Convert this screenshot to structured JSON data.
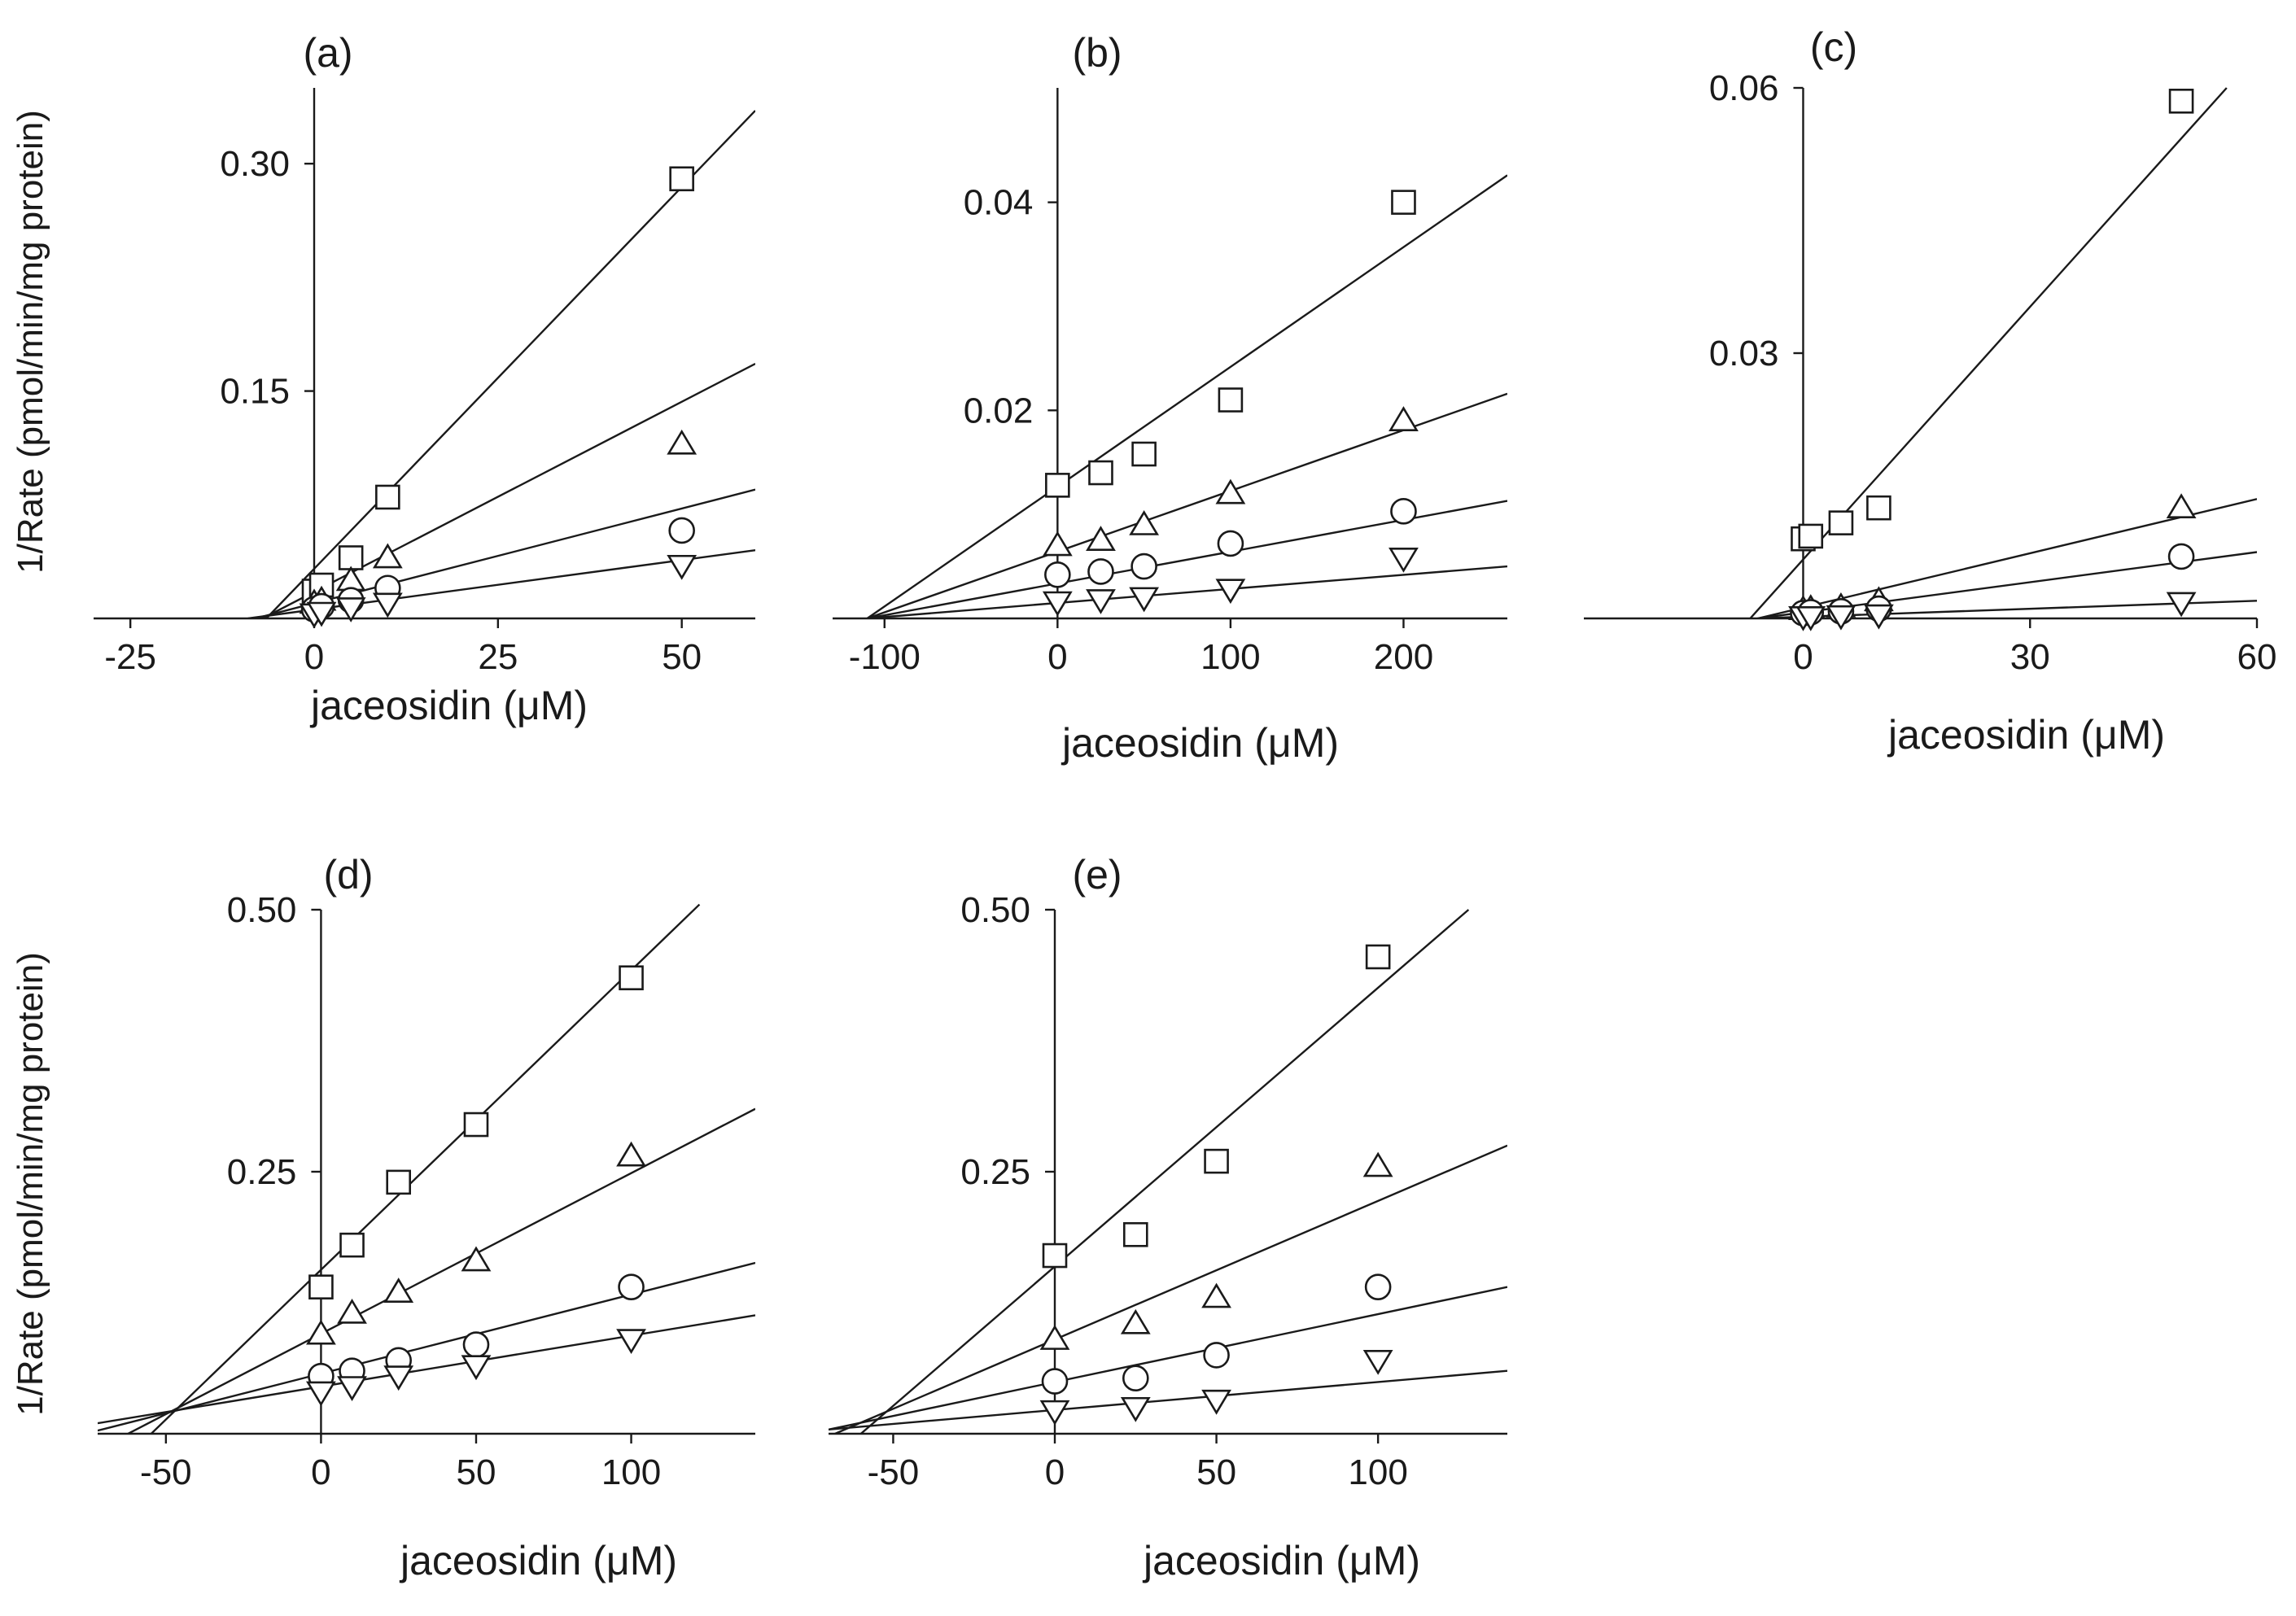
{
  "figure": {
    "y_axis_title_top": "1/Rate (pmol/min/mg protein)",
    "y_axis_title_bottom": "1/Rate (pmol/min/mg protein)"
  },
  "chart_data": [
    {
      "type": "scatter",
      "panel_label": "(a)",
      "xlabel": "jaceosidin (μM)",
      "ylabel": "1/Rate (pmol/min/mg protein)",
      "xlim": [
        -30,
        60
      ],
      "ylim": [
        0,
        0.35
      ],
      "xticks": [
        -25,
        0,
        25,
        50
      ],
      "xtick_labels": [
        "-25",
        "0",
        "25",
        "50"
      ],
      "yticks": [
        0.15,
        0.3
      ],
      "ytick_labels": [
        "0.15",
        "0.30"
      ],
      "series": [
        {
          "name": "square",
          "marker": "square",
          "x": [
            0,
            1,
            5,
            10,
            50
          ],
          "y": [
            0.018,
            0.022,
            0.04,
            0.08,
            0.29
          ],
          "fit": [
            [
              -6.5,
              0
            ],
            [
              60,
              0.335
            ]
          ]
        },
        {
          "name": "triangle-up",
          "marker": "triangle-up",
          "x": [
            0,
            1,
            5,
            10,
            50
          ],
          "y": [
            0.01,
            0.012,
            0.025,
            0.04,
            0.115
          ],
          "fit": [
            [
              -7,
              0
            ],
            [
              60,
              0.168
            ]
          ]
        },
        {
          "name": "circle",
          "marker": "circle",
          "x": [
            0,
            1,
            5,
            10,
            50
          ],
          "y": [
            0.006,
            0.008,
            0.012,
            0.02,
            0.058
          ],
          "fit": [
            [
              -8,
              0
            ],
            [
              60,
              0.085
            ]
          ]
        },
        {
          "name": "triangle-down",
          "marker": "triangle-down",
          "x": [
            0,
            1,
            5,
            10,
            50
          ],
          "y": [
            0.003,
            0.004,
            0.007,
            0.01,
            0.035
          ],
          "fit": [
            [
              -9,
              0
            ],
            [
              60,
              0.045
            ]
          ]
        }
      ]
    },
    {
      "type": "scatter",
      "panel_label": "(b)",
      "xlabel": "jaceosidin (μM)",
      "ylabel": "1/Rate (pmol/min/mg protein)",
      "xlim": [
        -130,
        260
      ],
      "ylim": [
        0,
        0.051
      ],
      "xticks": [
        -100,
        0,
        100,
        200
      ],
      "xtick_labels": [
        "-100",
        "0",
        "100",
        "200"
      ],
      "yticks": [
        0.02,
        0.04
      ],
      "ytick_labels": [
        "0.02",
        "0.04"
      ],
      "series": [
        {
          "name": "square",
          "marker": "square",
          "x": [
            0,
            25,
            50,
            100,
            200
          ],
          "y": [
            0.0128,
            0.014,
            0.0158,
            0.021,
            0.04
          ],
          "fit": [
            [
              -110,
              0
            ],
            [
              260,
              0.0426
            ]
          ]
        },
        {
          "name": "triangle-up",
          "marker": "triangle-up",
          "x": [
            0,
            25,
            50,
            100,
            200
          ],
          "y": [
            0.007,
            0.0075,
            0.009,
            0.012,
            0.019
          ],
          "fit": [
            [
              -110,
              0
            ],
            [
              260,
              0.0216
            ]
          ]
        },
        {
          "name": "circle",
          "marker": "circle",
          "x": [
            0,
            25,
            50,
            100,
            200
          ],
          "y": [
            0.0042,
            0.0045,
            0.005,
            0.0072,
            0.0103
          ],
          "fit": [
            [
              -110,
              0
            ],
            [
              260,
              0.0113
            ]
          ]
        },
        {
          "name": "triangle-down",
          "marker": "triangle-down",
          "x": [
            0,
            25,
            50,
            100,
            200
          ],
          "y": [
            0.0016,
            0.0018,
            0.002,
            0.0028,
            0.0058
          ],
          "fit": [
            [
              -110,
              0
            ],
            [
              260,
              0.005
            ]
          ]
        }
      ]
    },
    {
      "type": "scatter",
      "panel_label": "(c)",
      "xlabel": "jaceosidin (μM)",
      "ylabel": "1/Rate (pmol/min/mg protein)",
      "xlim": [
        -29,
        60
      ],
      "ylim": [
        0,
        0.06
      ],
      "xticks": [
        0,
        30,
        60
      ],
      "xtick_labels": [
        "0",
        "30",
        "60"
      ],
      "yticks": [
        0.03,
        0.06
      ],
      "ytick_labels": [
        "0.03",
        "0.06"
      ],
      "series": [
        {
          "name": "square",
          "marker": "square",
          "x": [
            0,
            1,
            5,
            10,
            50
          ],
          "y": [
            0.009,
            0.0093,
            0.0108,
            0.0125,
            0.0585
          ],
          "fit": [
            [
              -7,
              0
            ],
            [
              56,
              0.06
            ]
          ]
        },
        {
          "name": "triangle-up",
          "marker": "triangle-up",
          "x": [
            0,
            1,
            5,
            10,
            50
          ],
          "y": [
            0.001,
            0.0011,
            0.0013,
            0.002,
            0.0125
          ],
          "fit": [
            [
              -6,
              0
            ],
            [
              60,
              0.0135
            ]
          ]
        },
        {
          "name": "circle",
          "marker": "circle",
          "x": [
            0,
            1,
            5,
            10,
            50
          ],
          "y": [
            0.0006,
            0.0007,
            0.0008,
            0.0011,
            0.007
          ],
          "fit": [
            [
              -6,
              0
            ],
            [
              60,
              0.0075
            ]
          ]
        },
        {
          "name": "triangle-down",
          "marker": "triangle-down",
          "x": [
            0,
            1,
            5,
            10,
            50
          ],
          "y": [
            0.0002,
            0.0002,
            0.0003,
            0.0004,
            0.0018
          ],
          "fit": [
            [
              -6,
              0
            ],
            [
              60,
              0.002
            ]
          ]
        }
      ]
    },
    {
      "type": "scatter",
      "panel_label": "(d)",
      "xlabel": "jaceosidin (μM)",
      "ylabel": "1/Rate (pmol/min/mg protein)",
      "xlim": [
        -72,
        140
      ],
      "ylim": [
        0,
        0.5
      ],
      "xticks": [
        -50,
        0,
        50,
        100
      ],
      "xtick_labels": [
        "-50",
        "0",
        "50",
        "100"
      ],
      "yticks": [
        0.25,
        0.5
      ],
      "ytick_labels": [
        "0.25",
        "0.50"
      ],
      "series": [
        {
          "name": "square",
          "marker": "square",
          "x": [
            0,
            10,
            25,
            50,
            100
          ],
          "y": [
            0.14,
            0.18,
            0.24,
            0.295,
            0.435
          ],
          "fit": [
            [
              -60,
              -0.015
            ],
            [
              122,
              0.505
            ]
          ]
        },
        {
          "name": "triangle-up",
          "marker": "triangle-up",
          "x": [
            0,
            10,
            25,
            50,
            100
          ],
          "y": [
            0.095,
            0.115,
            0.135,
            0.165,
            0.265
          ],
          "fit": [
            [
              -72,
              -0.015
            ],
            [
              140,
              0.31
            ]
          ]
        },
        {
          "name": "circle",
          "marker": "circle",
          "x": [
            0,
            10,
            25,
            50,
            100
          ],
          "y": [
            0.055,
            0.06,
            0.07,
            0.085,
            0.14
          ],
          "fit": [
            [
              -72,
              0.003
            ],
            [
              140,
              0.163
            ]
          ]
        },
        {
          "name": "triangle-down",
          "marker": "triangle-down",
          "x": [
            0,
            10,
            25,
            50,
            100
          ],
          "y": [
            0.04,
            0.045,
            0.055,
            0.065,
            0.09
          ],
          "fit": [
            [
              -72,
              0.01
            ],
            [
              140,
              0.113
            ]
          ]
        }
      ]
    },
    {
      "type": "scatter",
      "panel_label": "(e)",
      "xlabel": "jaceosidin (μM)",
      "ylabel": "1/Rate (pmol/min/mg protein)",
      "xlim": [
        -70,
        140
      ],
      "ylim": [
        0,
        0.5
      ],
      "xticks": [
        -50,
        0,
        50,
        100
      ],
      "xtick_labels": [
        "-50",
        "0",
        "50",
        "100"
      ],
      "yticks": [
        0.25,
        0.5
      ],
      "ytick_labels": [
        "0.25",
        "0.50"
      ],
      "series": [
        {
          "name": "square",
          "marker": "square",
          "x": [
            0,
            25,
            50,
            100
          ],
          "y": [
            0.17,
            0.19,
            0.26,
            0.455
          ],
          "fit": [
            [
              -60,
              0
            ],
            [
              128,
              0.5
            ]
          ]
        },
        {
          "name": "triangle-up",
          "marker": "triangle-up",
          "x": [
            0,
            25,
            50,
            100
          ],
          "y": [
            0.09,
            0.105,
            0.13,
            0.255
          ],
          "fit": [
            [
              -68,
              0
            ],
            [
              140,
              0.275
            ]
          ]
        },
        {
          "name": "circle",
          "marker": "circle",
          "x": [
            0,
            25,
            50,
            100
          ],
          "y": [
            0.05,
            0.053,
            0.075,
            0.14
          ],
          "fit": [
            [
              -70,
              0.004
            ],
            [
              140,
              0.14
            ]
          ]
        },
        {
          "name": "triangle-down",
          "marker": "triangle-down",
          "x": [
            0,
            25,
            50,
            100
          ],
          "y": [
            0.022,
            0.025,
            0.032,
            0.07
          ],
          "fit": [
            [
              -70,
              0.004
            ],
            [
              140,
              0.06
            ]
          ]
        }
      ]
    }
  ]
}
